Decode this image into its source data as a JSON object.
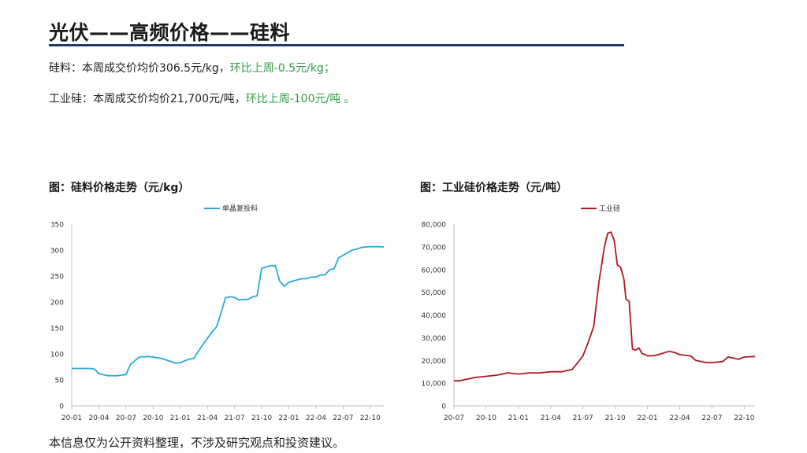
{
  "header": {
    "title": "光伏——高频价格——硅料"
  },
  "summary": {
    "line1_prefix": "硅料：本周成交价均价306.5元/kg，",
    "line1_change": "环比上周-0.5元/kg；",
    "line2_prefix": "工业硅：本周成交价均价21,700元/吨，",
    "line2_change": "环比上周-100元/吨 。"
  },
  "colors": {
    "accent_rule": "#1f3864",
    "change_green": "#2e9e47",
    "series_blue": "#29a9d8",
    "series_red": "#b01820"
  },
  "footer": {
    "disclaimer": "本信息仅为公开资料整理，不涉及研究观点和投资建议。"
  },
  "chart_data": [
    {
      "type": "line",
      "title": "图：硅料价格走势（元/kg）",
      "legend": "单晶复投料",
      "legend_position": "top-center",
      "xlabel": "",
      "ylabel": "",
      "ylim": [
        0,
        350
      ],
      "yticks": [
        0,
        50,
        100,
        150,
        200,
        250,
        300,
        350
      ],
      "xlim": [
        0,
        34.5
      ],
      "xticks": [
        "20-01",
        "20-04",
        "20-07",
        "20-10",
        "21-01",
        "21-04",
        "21-07",
        "21-10",
        "22-01",
        "22-04",
        "22-07",
        "22-10"
      ],
      "series": [
        {
          "name": "单晶复投料",
          "color": "#29a9d8",
          "x": [
            0,
            1,
            2,
            2.5,
            3.0,
            3.5,
            4.0,
            5,
            6,
            6.5,
            7.2,
            7.5,
            8.5,
            9,
            10,
            11,
            11.5,
            12,
            13,
            13.5,
            14,
            14.5,
            15,
            15.5,
            16,
            16.5,
            17,
            17.5,
            18,
            18.5,
            19,
            19.5,
            20,
            20.5,
            21,
            22,
            22.5,
            23,
            23.5,
            24,
            25,
            25.5,
            26,
            26.5,
            27,
            27.5,
            28,
            28.5,
            29,
            29.5,
            30,
            30.5,
            31,
            31.5,
            32,
            32.5,
            33,
            34,
            34.5
          ],
          "y": [
            72,
            72,
            72,
            71,
            62,
            60,
            58,
            58,
            60,
            80,
            90,
            94,
            95,
            94,
            91,
            85,
            82,
            83,
            90,
            91,
            105,
            118,
            130,
            142,
            152,
            178,
            208,
            210,
            209,
            204,
            205,
            205,
            210,
            212,
            265,
            270,
            270,
            240,
            230,
            238,
            243,
            245,
            245,
            248,
            248,
            252,
            252,
            262,
            264,
            285,
            290,
            295,
            300,
            302,
            305,
            306,
            306.5,
            306.5,
            306
          ]
        }
      ]
    },
    {
      "type": "line",
      "title": "图：工业硅价格走势（元/吨）",
      "legend": "工业硅",
      "legend_position": "top-center",
      "xlabel": "",
      "ylabel": "",
      "ylim": [
        0,
        80000
      ],
      "yticks": [
        "0",
        "10,000",
        "20,000",
        "30,000",
        "40,000",
        "50,000",
        "60,000",
        "70,000",
        "80,000"
      ],
      "ytick_values": [
        0,
        10000,
        20000,
        30000,
        40000,
        50000,
        60000,
        70000,
        80000
      ],
      "xlim": [
        0,
        28
      ],
      "xticks": [
        "20-07",
        "20-10",
        "21-01",
        "21-04",
        "21-07",
        "21-10",
        "22-01",
        "22-04",
        "22-07",
        "22-10"
      ],
      "series": [
        {
          "name": "工业硅",
          "color": "#b01820",
          "x": [
            0,
            0.5,
            1,
            1.5,
            2,
            3,
            4,
            5,
            6,
            7,
            8,
            9,
            10,
            11,
            12,
            12.5,
            13,
            13.5,
            14,
            14.3,
            14.6,
            14.9,
            15.2,
            15.5,
            15.8,
            16.0,
            16.3,
            16.6,
            16.9,
            17.2,
            17.5,
            17.8,
            18,
            18.5,
            19,
            20,
            20.5,
            21,
            22,
            22.5,
            23,
            23.5,
            24,
            25,
            25.5,
            26,
            26.5,
            27,
            28
          ],
          "y": [
            11000,
            11000,
            11500,
            12000,
            12500,
            13000,
            13500,
            14500,
            14000,
            14500,
            14500,
            15000,
            15000,
            16000,
            22000,
            28000,
            35000,
            55000,
            70000,
            76000,
            76500,
            73000,
            62000,
            61000,
            56000,
            47000,
            46000,
            25000,
            24500,
            25500,
            23000,
            22500,
            22000,
            22000,
            22500,
            24000,
            23500,
            22500,
            22000,
            20000,
            19500,
            19000,
            19000,
            19500,
            21500,
            21000,
            20500,
            21500,
            21700
          ]
        }
      ]
    }
  ]
}
